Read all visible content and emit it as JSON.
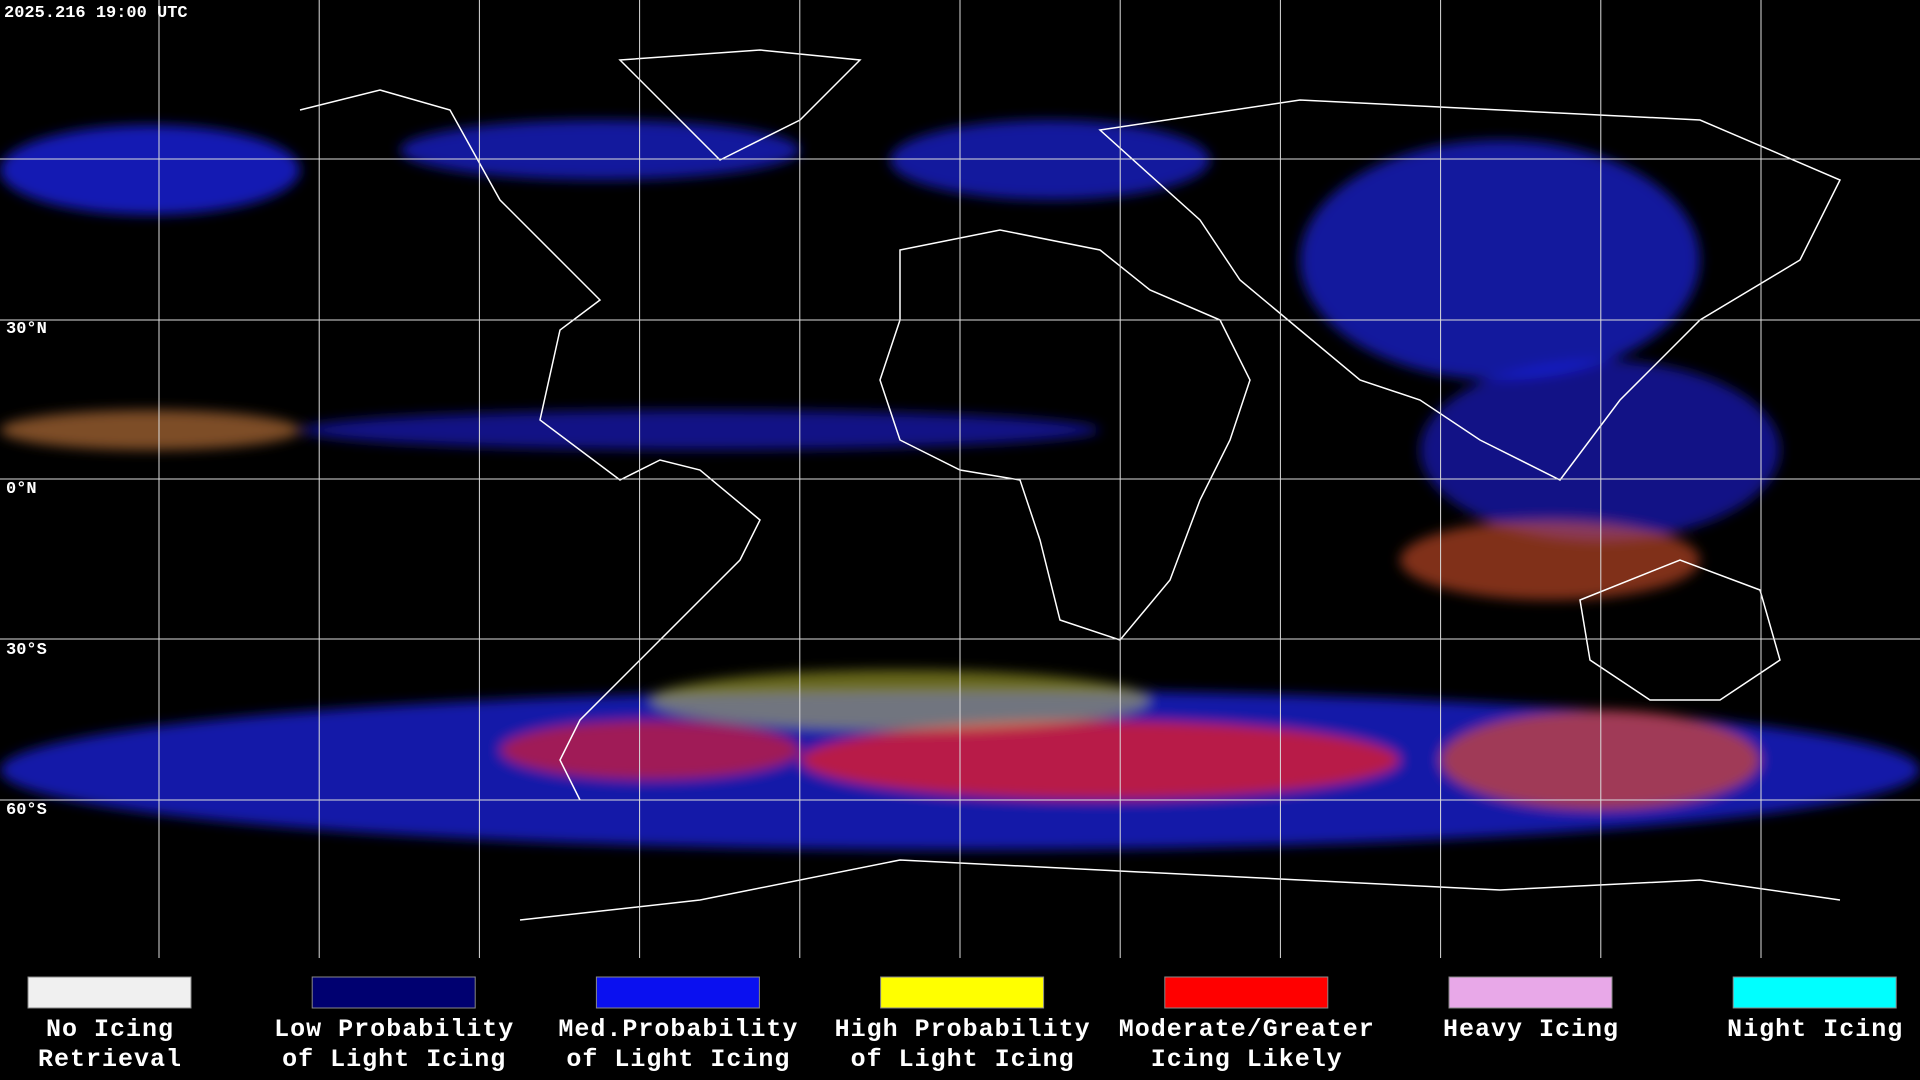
{
  "header": {
    "timestamp": "2025.216 19:00 UTC"
  },
  "map": {
    "latitude_labels": [
      "30°N",
      "0°N",
      "30°S",
      "60°S"
    ]
  },
  "legend": [
    {
      "color": "#f0f0f0",
      "label_lines": [
        "No Icing",
        "Retrieval"
      ]
    },
    {
      "color": "#000070",
      "label_lines": [
        "Low Probability",
        "of Light Icing"
      ]
    },
    {
      "color": "#0a10f0",
      "label_lines": [
        "Med.Probability",
        "of Light Icing"
      ]
    },
    {
      "color": "#ffff00",
      "label_lines": [
        "High Probability",
        "of Light Icing"
      ]
    },
    {
      "color": "#ff0000",
      "label_lines": [
        "Moderate/Greater",
        "Icing Likely"
      ]
    },
    {
      "color": "#e8a8e8",
      "label_lines": [
        "Heavy Icing"
      ]
    },
    {
      "color": "#00ffff",
      "label_lines": [
        "Night Icing"
      ]
    }
  ]
}
